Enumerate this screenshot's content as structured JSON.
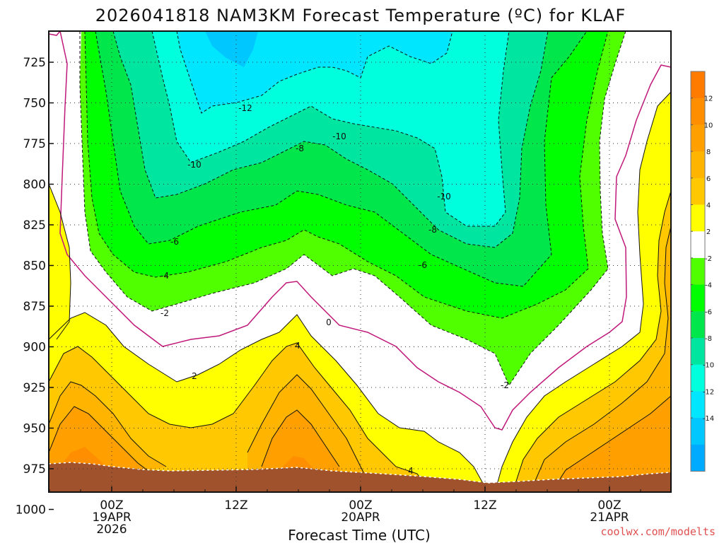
{
  "chart_data": {
    "type": "contour",
    "title": "2026041818 NAM3KM Forecast Temperature (ºC) for KLAF",
    "xlabel": "Forecast Time (UTC)",
    "ylabel": "",
    "y_ticks": [
      "725",
      "750",
      "775",
      "800",
      "825",
      "850",
      "875",
      "900",
      "925",
      "950",
      "975",
      "1000"
    ],
    "x_ticks": [
      {
        "top": "00Z",
        "mid": "19APR",
        "bot": "2026"
      },
      {
        "top": "12Z",
        "mid": "",
        "bot": ""
      },
      {
        "top": "00Z",
        "mid": "20APR",
        "bot": ""
      },
      {
        "top": "12Z",
        "mid": "",
        "bot": ""
      },
      {
        "top": "00Z",
        "mid": "21APR",
        "bot": ""
      }
    ],
    "contour_labels": [
      "-12",
      "-10",
      "-10",
      "-10",
      "-8",
      "-8",
      "-6",
      "-6",
      "-4",
      "-2",
      "-2",
      "0",
      "2",
      "4",
      "4"
    ],
    "colorbar": {
      "labels": [
        "12",
        "10",
        "8",
        "6",
        "4",
        "2",
        "-2",
        "-4",
        "-6",
        "-8",
        "-10",
        "-12",
        "-14"
      ],
      "colors": [
        "#FF7B00",
        "#FF8E00",
        "#FFA000",
        "#FFB400",
        "#FFC800",
        "#FFFF00",
        "#FFFFFF",
        "#50FF00",
        "#00FF00",
        "#00E64B",
        "#00E6A0",
        "#00FFDC",
        "#00E6FF",
        "#00C8FF",
        "#00AAFF"
      ]
    },
    "fill_colors": {
      "cold_m14": "#00AAFF",
      "cold_m12": "#00E6FF",
      "cold_m10": "#00FFDC",
      "cold_m8": "#00E6A0",
      "cold_m6": "#00E64B",
      "cold_m4": "#00FF00",
      "cold_m2": "#50FF00",
      "warm_2": "#FFFF00",
      "warm_4": "#FFC800",
      "warm_6": "#FFB400",
      "warm_8": "#FFA000",
      "warm_10": "#FF8E00",
      "ground": "#A0522D",
      "zero_line": "#C0187A"
    }
  },
  "watermark": "coolwx.com/modelts"
}
